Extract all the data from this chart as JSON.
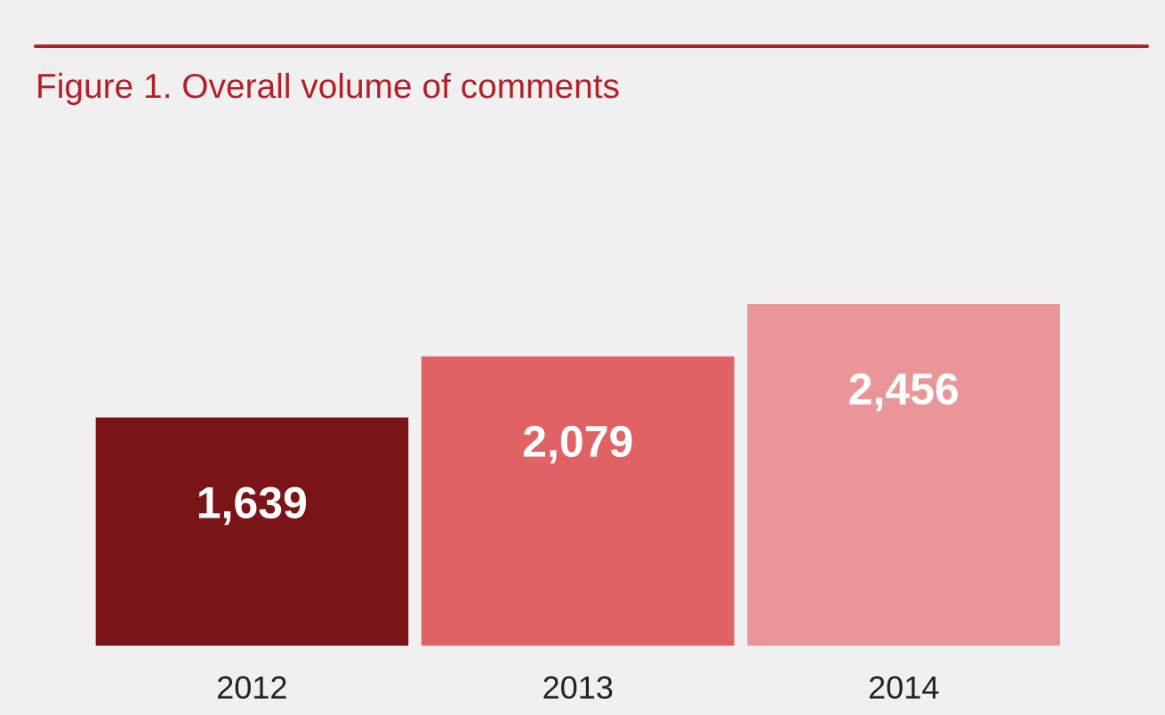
{
  "chart_data": {
    "type": "bar",
    "title": "Figure 1. Overall volume of comments",
    "categories": [
      "2012",
      "2013",
      "2014"
    ],
    "values": [
      1639,
      2079,
      2456
    ],
    "colors": [
      "#7b1416",
      "#e06264",
      "#ea9597"
    ],
    "value_labels": [
      "1,639",
      "2,079",
      "2,456"
    ],
    "grid": false,
    "legend": false
  }
}
